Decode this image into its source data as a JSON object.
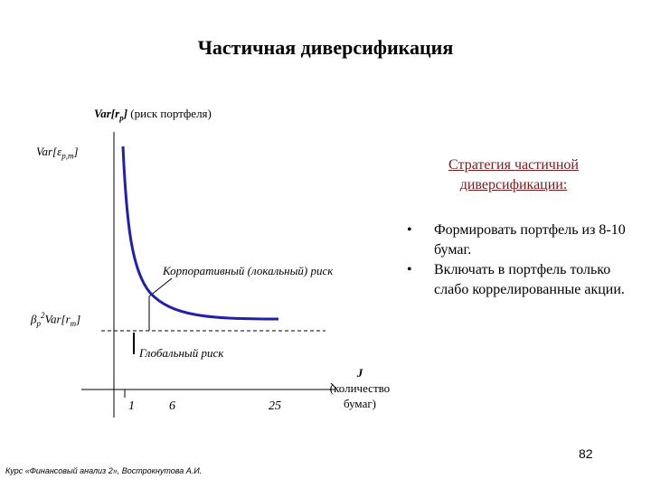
{
  "title": "Частичная диверсификация",
  "y_axis_label": {
    "var": "Var[r",
    "sub": "p",
    "close": "]",
    "desc": " (риск портфеля)"
  },
  "y_level_top": {
    "main": "Var[ε",
    "sub": "p,m",
    "close": "]"
  },
  "y_level_bottom": {
    "beta": "β",
    "sub": "p",
    "sup": "2",
    "rest": "Var[r",
    "sub2": "m",
    "close": "]"
  },
  "corporate_risk_label": "Корпоративный (локальный) риск",
  "global_risk_label": "Глобальный риск",
  "x_axis_label": {
    "symbol": "J",
    "line1": "(количество",
    "line2": "бумаг)"
  },
  "x_ticks": [
    "1",
    "6",
    "25"
  ],
  "strategy_heading": "Стратегия частичной диверсификации:",
  "strategy_items": [
    "Формировать портфель из 8-10 бумаг.",
    "Включать в портфель только слабо коррелированные акции."
  ],
  "bullet_char": "•",
  "page_number": "82",
  "footer": "Курс «Финансовый анализ 2», Вострокнутова А.И.",
  "colors": {
    "curve": "#2020b0",
    "heading": "#7a1a1a"
  }
}
